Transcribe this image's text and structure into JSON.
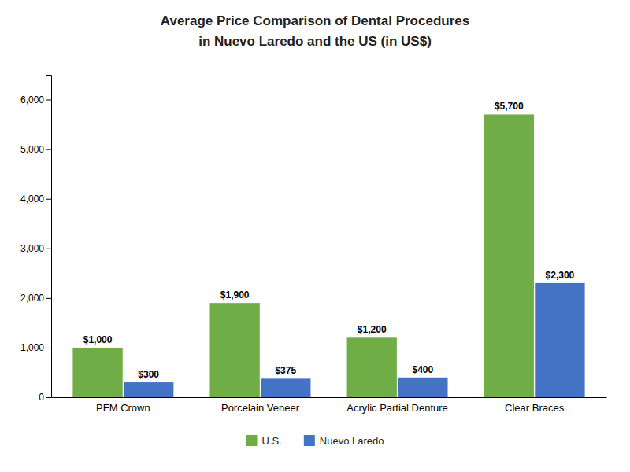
{
  "chart_data": {
    "type": "bar",
    "title": "Average Price Comparison of Dental Procedures",
    "subtitle": "in Nuevo Laredo and the US (in US$)",
    "categories": [
      "PFM Crown",
      "Porcelain Veneer",
      "Acrylic Partial Denture",
      "Clear Braces"
    ],
    "series": [
      {
        "name": "U.S.",
        "color": "#70AD47",
        "values": [
          1000,
          1900,
          1200,
          5700
        ],
        "value_labels": [
          "$1,000",
          "$1,900",
          "$1,200",
          "$5,700"
        ]
      },
      {
        "name": "Nuevo Laredo",
        "color": "#4472C4",
        "values": [
          300,
          375,
          400,
          2300
        ],
        "value_labels": [
          "$300",
          "$375",
          "$400",
          "$2,300"
        ]
      }
    ],
    "ylim": [
      0,
      6500
    ],
    "yticks": [
      0,
      {
        "value": 1000,
        "label": "1,000"
      },
      {
        "value": 2000,
        "label": "2,000"
      },
      {
        "value": 3000,
        "label": "3,000"
      },
      {
        "value": 4000,
        "label": "4,000"
      },
      {
        "value": 5000,
        "label": "5,000"
      },
      {
        "value": 6000,
        "label": "6,000"
      }
    ],
    "grid": false,
    "legend": "bottom",
    "data_labels": true
  }
}
